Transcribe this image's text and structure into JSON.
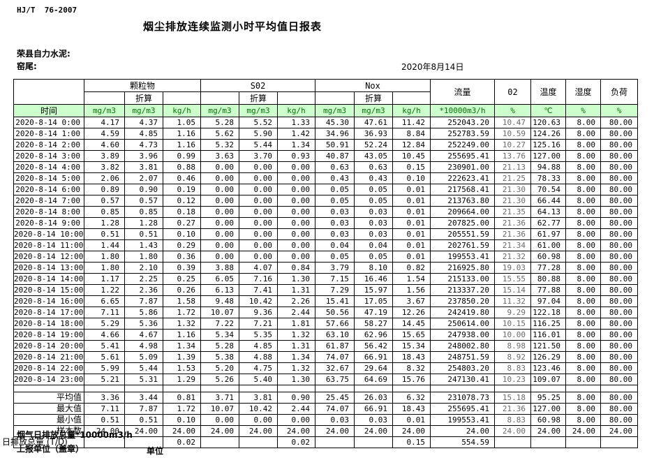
{
  "meta": {
    "standard": "HJ/T  76-2007",
    "title": "烟尘排放连续监测小时平均值日报表",
    "company": "荣县自力水泥:",
    "station": "窑尾:",
    "date": "2020年8月14日"
  },
  "table": {
    "time_label": "时间",
    "subheader": "折算",
    "groups": {
      "particulate": "颗粒物",
      "so2": "S02",
      "nox": "Nox",
      "flow": "流量",
      "o2": "02",
      "temp": "温度",
      "humidity": "湿度",
      "load": "负荷"
    },
    "units": [
      "mg/m3",
      "mg/m3",
      "kg/h",
      "mg/m3",
      "mg/m3",
      "kg/h",
      "mg/m3",
      "mg/m3",
      "kg/h",
      "*10000m3/h",
      "%",
      "℃",
      "%",
      "%"
    ],
    "rows": [
      [
        "2020-8-14 0:00",
        "4.17",
        "4.37",
        "1.05",
        "5.28",
        "5.52",
        "1.33",
        "45.30",
        "47.61",
        "11.42",
        "252043.20",
        "10.47",
        "120.63",
        "8.00",
        "80.00"
      ],
      [
        "2020-8-14 1:00",
        "4.59",
        "4.85",
        "1.16",
        "5.62",
        "5.90",
        "1.42",
        "34.96",
        "36.93",
        "8.84",
        "252783.59",
        "10.59",
        "124.26",
        "8.00",
        "80.00"
      ],
      [
        "2020-8-14 2:00",
        "4.60",
        "4.73",
        "1.16",
        "5.32",
        "5.44",
        "1.34",
        "50.91",
        "52.24",
        "12.84",
        "252249.00",
        "10.27",
        "125.16",
        "8.00",
        "80.00"
      ],
      [
        "2020-8-14 3:00",
        "3.89",
        "3.96",
        "0.99",
        "3.63",
        "3.70",
        "0.93",
        "40.87",
        "43.05",
        "10.45",
        "255695.41",
        "13.76",
        "127.00",
        "8.00",
        "80.00"
      ],
      [
        "2020-8-14 4:00",
        "3.82",
        "3.81",
        "0.88",
        "0.00",
        "0.00",
        "0.00",
        "0.63",
        "0.63",
        "0.15",
        "230901.00",
        "21.13",
        "94.88",
        "8.00",
        "80.00"
      ],
      [
        "2020-8-14 5:00",
        "2.06",
        "2.07",
        "0.46",
        "0.00",
        "0.00",
        "0.00",
        "0.43",
        "0.43",
        "0.10",
        "222623.41",
        "21.25",
        "78.33",
        "8.00",
        "80.00"
      ],
      [
        "2020-8-14 6:00",
        "0.89",
        "0.90",
        "0.19",
        "0.00",
        "0.00",
        "0.00",
        "0.05",
        "0.05",
        "0.01",
        "217568.41",
        "21.30",
        "70.54",
        "8.00",
        "80.00"
      ],
      [
        "2020-8-14 7:00",
        "0.57",
        "0.57",
        "0.12",
        "0.00",
        "0.00",
        "0.00",
        "0.05",
        "0.05",
        "0.01",
        "213763.80",
        "21.30",
        "66.44",
        "8.00",
        "80.00"
      ],
      [
        "2020-8-14 8:00",
        "0.85",
        "0.85",
        "0.18",
        "0.00",
        "0.00",
        "0.00",
        "0.03",
        "0.03",
        "0.01",
        "209664.00",
        "21.35",
        "64.13",
        "8.00",
        "80.00"
      ],
      [
        "2020-8-14 9:00",
        "1.28",
        "1.28",
        "0.27",
        "0.00",
        "0.00",
        "0.00",
        "0.03",
        "0.03",
        "0.01",
        "207825.00",
        "21.36",
        "62.77",
        "8.00",
        "80.00"
      ],
      [
        "2020-8-14 10:00",
        "0.51",
        "0.51",
        "0.10",
        "0.00",
        "0.00",
        "0.00",
        "0.03",
        "0.03",
        "0.01",
        "205551.59",
        "21.36",
        "61.97",
        "8.00",
        "80.00"
      ],
      [
        "2020-8-14 11:00",
        "1.44",
        "1.43",
        "0.29",
        "0.00",
        "0.00",
        "0.00",
        "0.04",
        "0.04",
        "0.01",
        "202761.59",
        "21.34",
        "61.00",
        "8.00",
        "80.00"
      ],
      [
        "2020-8-14 12:00",
        "1.80",
        "1.80",
        "0.36",
        "0.00",
        "0.00",
        "0.00",
        "0.05",
        "0.05",
        "0.01",
        "199553.41",
        "21.32",
        "60.98",
        "8.00",
        "80.00"
      ],
      [
        "2020-8-14 13:00",
        "1.80",
        "2.10",
        "0.39",
        "3.88",
        "4.07",
        "0.84",
        "3.79",
        "8.10",
        "0.82",
        "216925.80",
        "19.03",
        "77.28",
        "8.00",
        "80.00"
      ],
      [
        "2020-8-14 14:00",
        "1.17",
        "2.25",
        "0.25",
        "6.05",
        "7.16",
        "1.30",
        "7.15",
        "16.46",
        "1.54",
        "215133.00",
        "15.55",
        "80.88",
        "8.00",
        "80.00"
      ],
      [
        "2020-8-14 15:00",
        "1.22",
        "2.36",
        "0.26",
        "6.13",
        "7.41",
        "1.31",
        "7.29",
        "15.97",
        "1.56",
        "213337.20",
        "15.14",
        "77.88",
        "8.00",
        "80.00"
      ],
      [
        "2020-8-14 16:00",
        "6.65",
        "7.87",
        "1.58",
        "9.48",
        "10.42",
        "2.26",
        "15.41",
        "17.05",
        "3.67",
        "237850.20",
        "11.32",
        "97.04",
        "8.00",
        "80.00"
      ],
      [
        "2020-8-14 17:00",
        "7.11",
        "5.86",
        "1.72",
        "10.07",
        "9.36",
        "2.44",
        "50.56",
        "47.19",
        "12.26",
        "242419.80",
        "9.29",
        "122.18",
        "8.00",
        "80.00"
      ],
      [
        "2020-8-14 18:00",
        "5.29",
        "5.36",
        "1.32",
        "7.22",
        "7.21",
        "1.81",
        "57.66",
        "58.27",
        "14.45",
        "250614.00",
        "10.15",
        "116.25",
        "8.00",
        "80.00"
      ],
      [
        "2020-8-14 19:00",
        "4.66",
        "4.67",
        "1.16",
        "5.34",
        "5.35",
        "1.32",
        "63.10",
        "62.96",
        "15.65",
        "247938.00",
        "10.00",
        "116.01",
        "8.00",
        "80.00"
      ],
      [
        "2020-8-14 20:00",
        "5.41",
        "4.98",
        "1.34",
        "5.28",
        "4.85",
        "1.31",
        "61.87",
        "56.42",
        "15.34",
        "248002.80",
        "8.98",
        "121.50",
        "8.00",
        "80.00"
      ],
      [
        "2020-8-14 21:00",
        "5.61",
        "5.09",
        "1.39",
        "5.38",
        "4.88",
        "1.34",
        "74.07",
        "66.91",
        "18.43",
        "248751.59",
        "8.92",
        "126.29",
        "8.00",
        "80.00"
      ],
      [
        "2020-8-14 22:00",
        "5.99",
        "5.44",
        "1.53",
        "5.20",
        "4.75",
        "1.32",
        "32.67",
        "29.64",
        "8.32",
        "254803.20",
        "8.83",
        "123.46",
        "8.00",
        "80.00"
      ],
      [
        "2020-8-14 23:00",
        "5.21",
        "5.31",
        "1.29",
        "5.26",
        "5.40",
        "1.30",
        "63.75",
        "64.69",
        "15.76",
        "247130.41",
        "10.23",
        "109.07",
        "8.00",
        "80.00"
      ]
    ],
    "summary": [
      [
        "平均值",
        "3.36",
        "3.44",
        "0.81",
        "3.71",
        "3.81",
        "0.90",
        "25.45",
        "26.03",
        "6.32",
        "231078.73",
        "15.18",
        "95.25",
        "8.00",
        "80.00"
      ],
      [
        "最大值",
        "7.11",
        "7.87",
        "1.72",
        "10.07",
        "10.42",
        "2.44",
        "74.07",
        "66.91",
        "18.43",
        "255695.41",
        "21.36",
        "127.00",
        "8.00",
        "80.00"
      ],
      [
        "最小值",
        "0.51",
        "0.51",
        "0.10",
        "0.00",
        "0.00",
        "0.00",
        "0.03",
        "0.03",
        "0.01",
        "199553.41",
        "8.83",
        "60.98",
        "8.00",
        "80.00"
      ],
      [
        "样本数",
        "24.00",
        "24.00",
        "24.00",
        "24.00",
        "24.00",
        "24.00",
        "24.00",
        "24.00",
        "24.00",
        "24.00",
        "24.00",
        "24.00",
        "24.00",
        "24.00"
      ]
    ],
    "total_row": [
      "日排放总量 (T/D)",
      "",
      "",
      "0.02",
      "",
      "",
      "0.02",
      "",
      "",
      "0.15",
      "554.59",
      "",
      "",
      "",
      ""
    ]
  },
  "footer": {
    "flow_note": "烟气日排放总量*10000m3/h",
    "report_unit": "上报单位（盖章）",
    "unit": "单位"
  },
  "colors": {
    "header_green": "#ccffcc",
    "unit_text_green": "#067206",
    "o2_text_gray": "#6a6a6a"
  }
}
